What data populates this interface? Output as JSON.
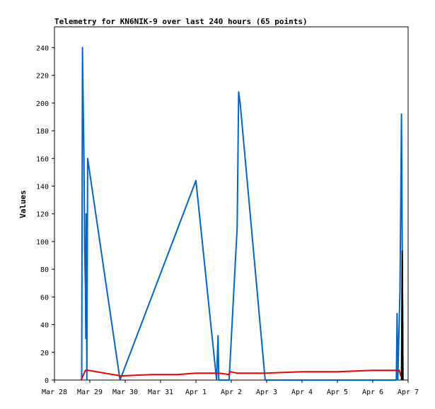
{
  "chart_data": {
    "type": "line",
    "title": "Telemetry for KN6NIK-9 over last 240 hours (65 points)",
    "ylabel": "Values",
    "xlabel": "",
    "ylim": [
      0,
      255
    ],
    "xlim": [
      "2024-03-28T00:00",
      "2024-04-07T00:00"
    ],
    "x_tick_labels": [
      "Mar 28",
      "Mar 29",
      "Mar 30",
      "Mar 31",
      "Apr 1",
      "Apr 2",
      "Apr 3",
      "Apr 4",
      "Apr 5",
      "Apr 6",
      "Apr 7"
    ],
    "y_ticks": [
      0,
      20,
      40,
      60,
      80,
      100,
      120,
      140,
      160,
      180,
      200,
      220,
      240
    ],
    "grid": false,
    "legend": "none",
    "series": [
      {
        "color": "#0066cc",
        "points": [
          [
            "2024-03-28T18:30",
            0
          ],
          [
            "2024-03-28T19:00",
            240
          ],
          [
            "2024-03-28T19:30",
            200
          ],
          [
            "2024-03-28T20:00",
            160
          ],
          [
            "2024-03-28T20:30",
            95
          ],
          [
            "2024-03-28T21:00",
            65
          ],
          [
            "2024-03-28T21:15",
            30
          ],
          [
            "2024-03-28T21:30",
            120
          ],
          [
            "2024-03-28T22:00",
            0
          ],
          [
            "2024-03-28T22:30",
            160
          ],
          [
            "2024-03-29T20:30",
            0
          ],
          [
            "2024-04-01T00:00",
            144
          ],
          [
            "2024-04-01T14:00",
            0
          ],
          [
            "2024-04-01T15:00",
            32
          ],
          [
            "2024-04-01T15:30",
            0
          ],
          [
            "2024-04-01T22:30",
            0
          ],
          [
            "2024-04-02T04:00",
            110
          ],
          [
            "2024-04-02T05:00",
            208
          ],
          [
            "2024-04-02T06:00",
            200
          ],
          [
            "2024-04-02T23:00",
            0
          ],
          [
            "2024-04-06T16:00",
            0
          ],
          [
            "2024-04-06T16:30",
            48
          ],
          [
            "2024-04-06T17:00",
            0
          ],
          [
            "2024-04-06T18:30",
            65
          ],
          [
            "2024-04-06T19:00",
            128
          ],
          [
            "2024-04-06T19:30",
            192
          ],
          [
            "2024-04-06T20:00",
            95
          ],
          [
            "2024-04-06T20:30",
            0
          ]
        ]
      },
      {
        "color": "#ee0000",
        "points": [
          [
            "2024-03-28T18:00",
            0
          ],
          [
            "2024-03-28T21:00",
            7
          ],
          [
            "2024-03-28T23:00",
            7
          ],
          [
            "2024-03-29T21:00",
            3
          ],
          [
            "2024-03-30T18:00",
            4
          ],
          [
            "2024-03-31T12:00",
            4
          ],
          [
            "2024-04-01T00:00",
            5
          ],
          [
            "2024-04-01T16:00",
            5
          ],
          [
            "2024-04-01T22:30",
            4
          ],
          [
            "2024-04-01T23:00",
            6
          ],
          [
            "2024-04-02T04:00",
            5
          ],
          [
            "2024-04-03T00:00",
            5
          ],
          [
            "2024-04-04T00:00",
            6
          ],
          [
            "2024-04-05T00:00",
            6
          ],
          [
            "2024-04-06T00:00",
            7
          ],
          [
            "2024-04-06T18:00",
            7
          ],
          [
            "2024-04-06T19:00",
            3
          ],
          [
            "2024-04-06T20:00",
            7
          ]
        ]
      },
      {
        "color": "#000000",
        "points": [
          [
            "2024-04-06T19:30",
            0
          ],
          [
            "2024-04-06T20:00",
            93
          ],
          [
            "2024-04-06T20:30",
            0
          ]
        ]
      }
    ]
  }
}
